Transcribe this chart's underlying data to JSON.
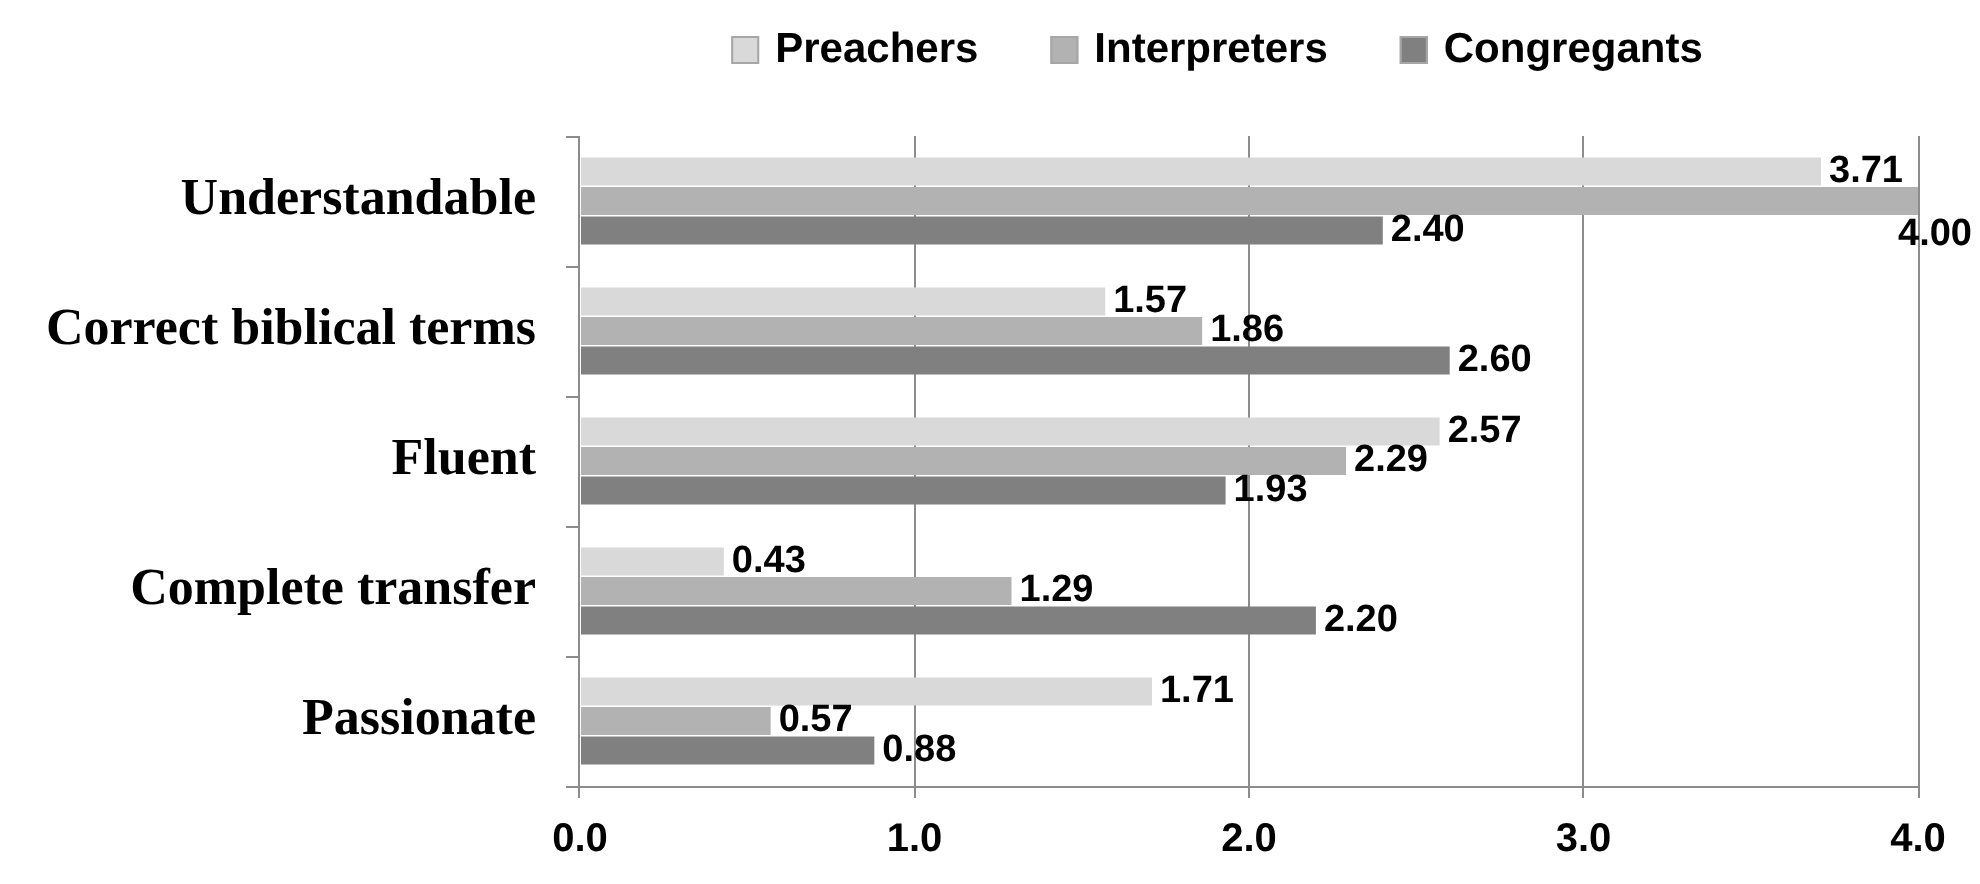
{
  "chart_data": {
    "type": "bar",
    "orientation": "horizontal",
    "categories": [
      "Understandable",
      "Correct biblical terms",
      "Fluent",
      "Complete transfer",
      "Passionate"
    ],
    "series": [
      {
        "name": "Preachers",
        "color": "#d9d9d9",
        "values": [
          3.71,
          1.57,
          2.57,
          0.43,
          1.71
        ],
        "value_labels": [
          "3.71",
          "1.57",
          "2.57",
          "0.43",
          "1.71"
        ]
      },
      {
        "name": "Interpreters",
        "color": "#b2b2b2",
        "values": [
          4.0,
          1.86,
          2.29,
          1.29,
          0.57
        ],
        "value_labels": [
          "4.00",
          "1.86",
          "2.29",
          "1.29",
          "0.57"
        ]
      },
      {
        "name": "Congregants",
        "color": "#808080",
        "values": [
          2.4,
          2.6,
          1.93,
          2.2,
          0.88
        ],
        "value_labels": [
          "2.40",
          "2.60",
          "1.93",
          "2.20",
          "0.88"
        ]
      }
    ],
    "xlim": [
      0,
      4
    ],
    "xticks": [
      {
        "value": 0,
        "label": "0.0"
      },
      {
        "value": 1,
        "label": "1.0"
      },
      {
        "value": 2,
        "label": "2.0"
      },
      {
        "value": 3,
        "label": "3.0"
      },
      {
        "value": 4,
        "label": "4.0"
      }
    ],
    "grid": "x",
    "legend": "top"
  }
}
